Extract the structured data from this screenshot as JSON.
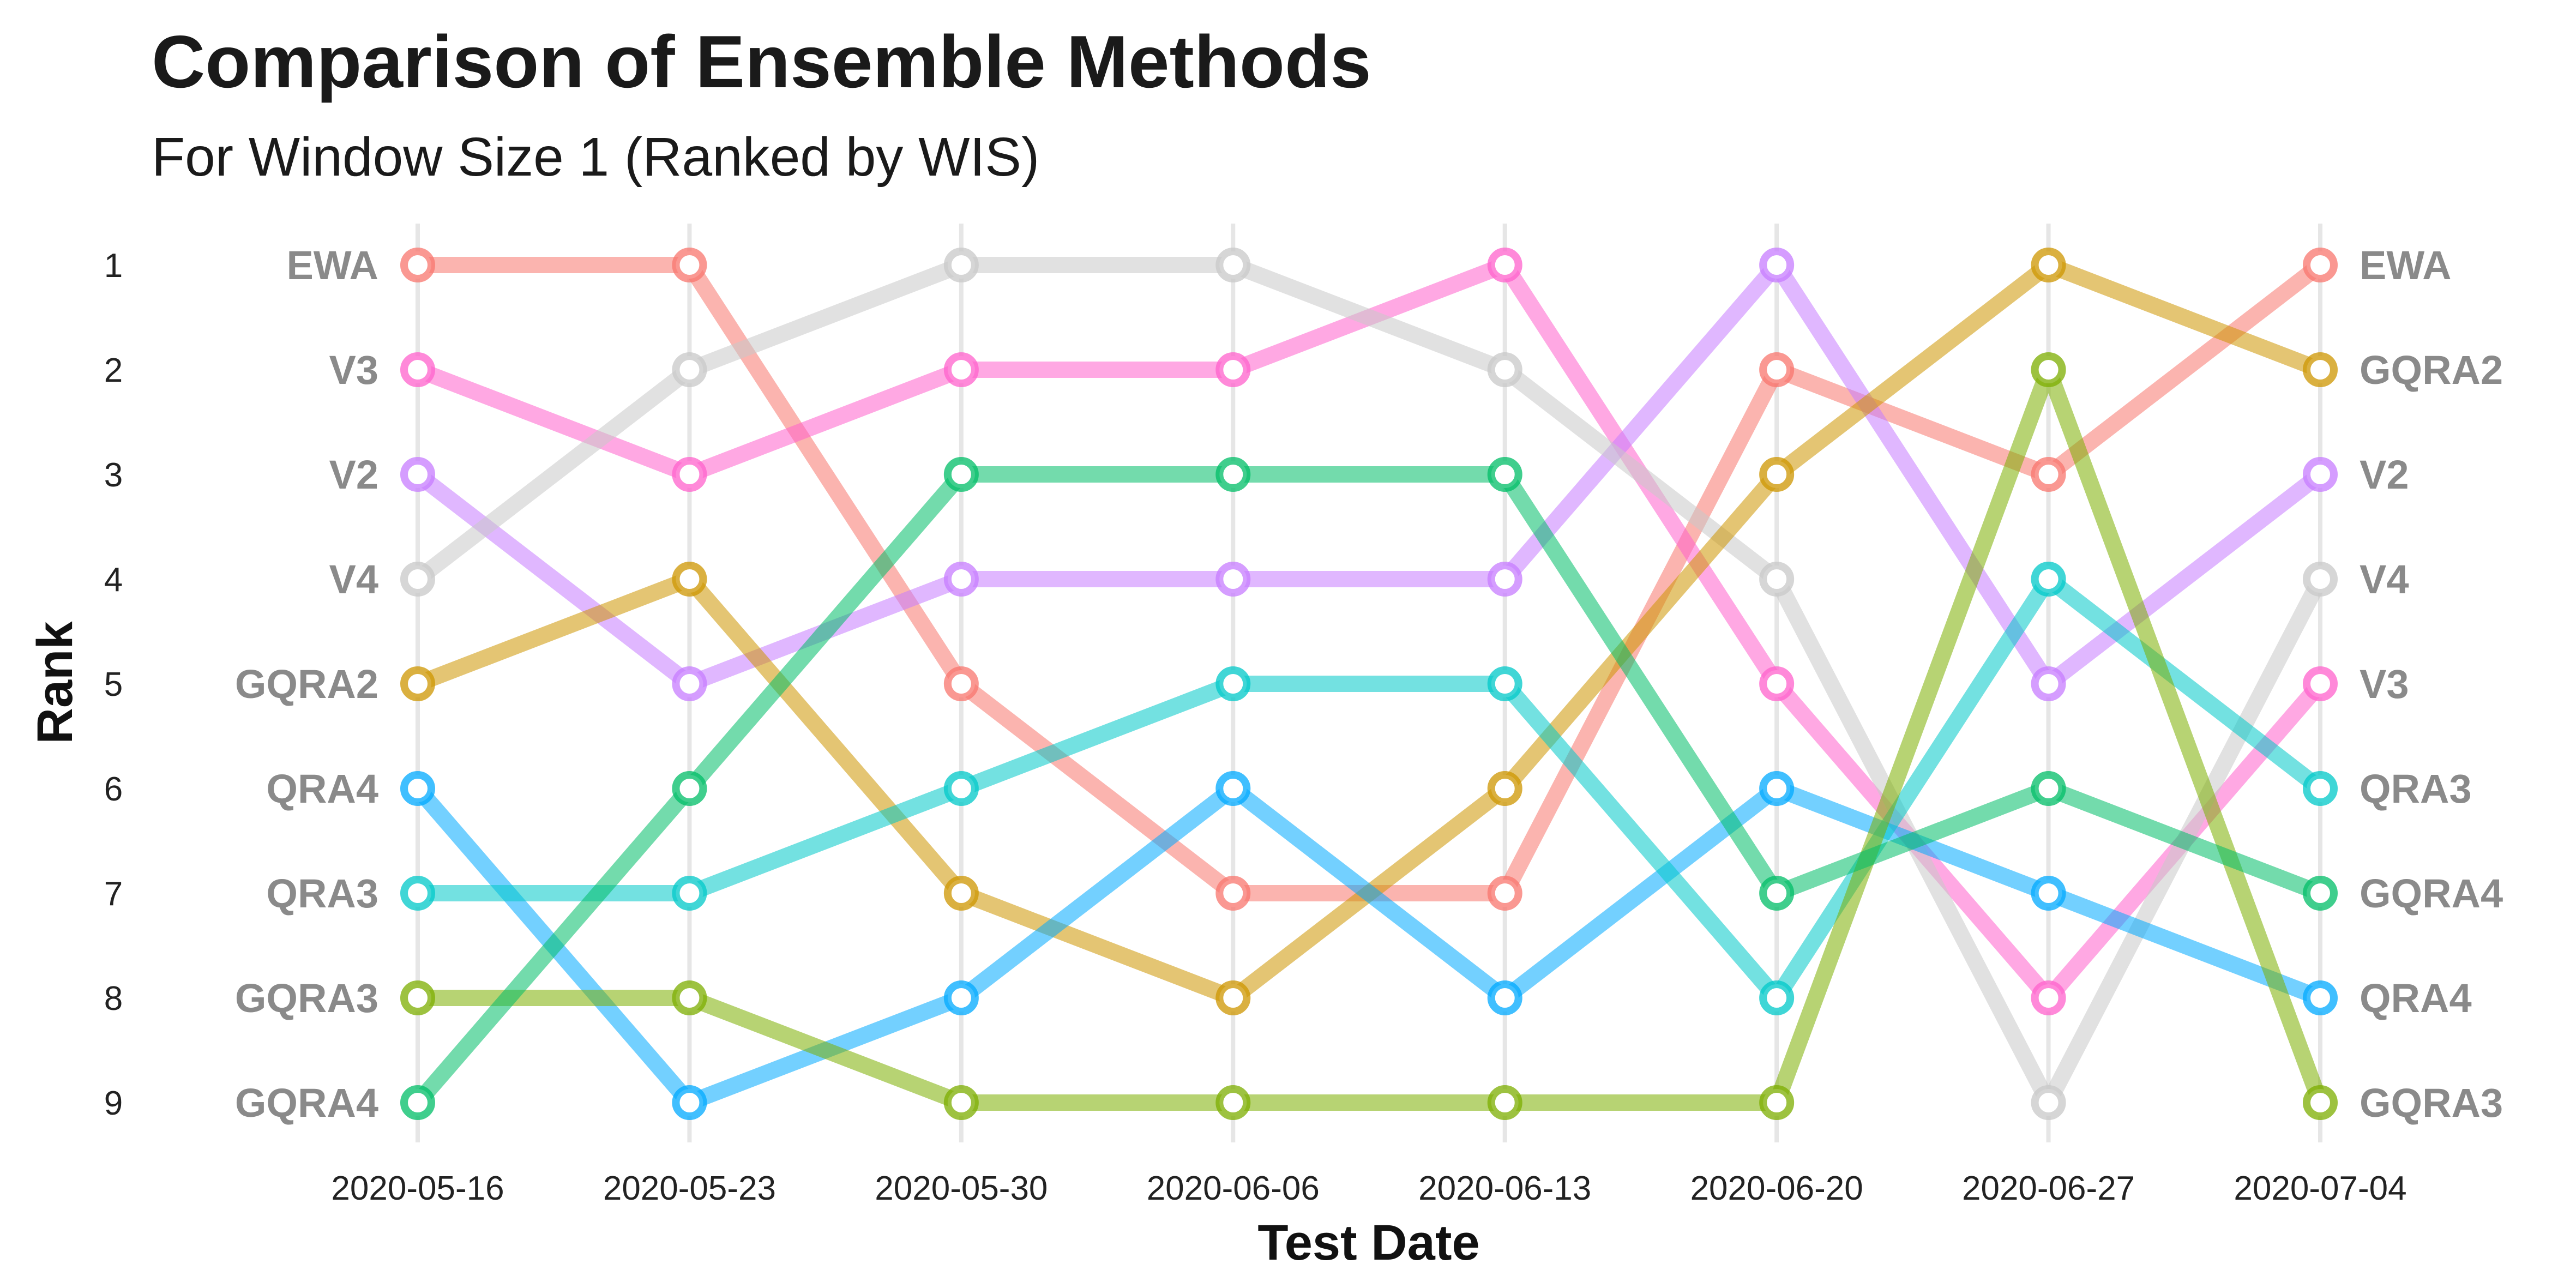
{
  "chart_data": {
    "type": "line",
    "title": "Comparison of Ensemble Methods",
    "subtitle": "For Window Size 1 (Ranked by WIS)",
    "xlabel": "Test Date",
    "ylabel": "Rank",
    "categories": [
      "2020-05-16",
      "2020-05-23",
      "2020-05-30",
      "2020-06-06",
      "2020-06-13",
      "2020-06-20",
      "2020-06-27",
      "2020-07-04"
    ],
    "y_ticks": [
      1,
      2,
      3,
      4,
      5,
      6,
      7,
      8,
      9
    ],
    "ylim": [
      1,
      9
    ],
    "y_reversed": true,
    "grid": "vertical major lines at each test date",
    "legend": "none (direct labels at both ends of each line)",
    "series": [
      {
        "name": "EWA",
        "color": "#F8766D",
        "values": [
          1,
          1,
          5,
          7,
          7,
          2,
          3,
          1
        ]
      },
      {
        "name": "V3",
        "color": "#FF61CC",
        "values": [
          2,
          3,
          2,
          2,
          1,
          5,
          8,
          5
        ]
      },
      {
        "name": "V2",
        "color": "#C77CFF",
        "values": [
          3,
          5,
          4,
          4,
          4,
          1,
          5,
          3
        ]
      },
      {
        "name": "V4",
        "color": "#C8C8C8",
        "values": [
          4,
          2,
          1,
          1,
          2,
          4,
          9,
          4
        ]
      },
      {
        "name": "GQRA2",
        "color": "#CD9600",
        "values": [
          5,
          4,
          7,
          8,
          6,
          3,
          1,
          2
        ]
      },
      {
        "name": "QRA4",
        "color": "#00A9FF",
        "values": [
          6,
          9,
          8,
          6,
          8,
          6,
          7,
          8
        ]
      },
      {
        "name": "QRA3",
        "color": "#00C8C8",
        "values": [
          7,
          7,
          6,
          5,
          5,
          8,
          4,
          6
        ]
      },
      {
        "name": "GQRA3",
        "color": "#7CAE00",
        "values": [
          8,
          8,
          9,
          9,
          9,
          9,
          2,
          9
        ]
      },
      {
        "name": "GQRA4",
        "color": "#00BE67",
        "values": [
          9,
          6,
          3,
          3,
          3,
          7,
          6,
          7
        ]
      }
    ]
  }
}
